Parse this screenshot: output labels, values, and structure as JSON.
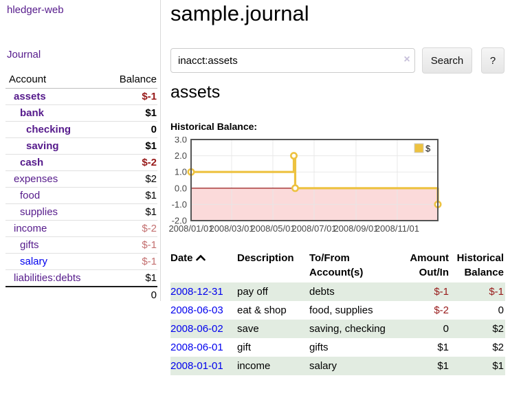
{
  "app": {
    "title": "hledger-web"
  },
  "sidebar": {
    "journal_label": "Journal",
    "table": {
      "account_header": "Account",
      "balance_header": "Balance",
      "rows": [
        {
          "name": "assets",
          "depth": 1,
          "bold": true,
          "link": "purple",
          "balance": "$-1",
          "balance_style": "neg-strong"
        },
        {
          "name": "bank",
          "depth": 2,
          "bold": true,
          "link": "purple",
          "balance": "$1",
          "balance_style": "plain"
        },
        {
          "name": "checking",
          "depth": 3,
          "bold": true,
          "link": "purple",
          "balance": "0",
          "balance_style": "plain"
        },
        {
          "name": "saving",
          "depth": 3,
          "bold": true,
          "link": "purple",
          "balance": "$1",
          "balance_style": "plain"
        },
        {
          "name": "cash",
          "depth": 2,
          "bold": true,
          "link": "purple",
          "balance": "$-2",
          "balance_style": "neg-strong"
        },
        {
          "name": "expenses",
          "depth": 1,
          "bold": false,
          "link": "purple",
          "balance": "$2",
          "balance_style": "plain"
        },
        {
          "name": "food",
          "depth": 2,
          "bold": false,
          "link": "purple",
          "balance": "$1",
          "balance_style": "plain"
        },
        {
          "name": "supplies",
          "depth": 2,
          "bold": false,
          "link": "purple",
          "balance": "$1",
          "balance_style": "plain"
        },
        {
          "name": "income",
          "depth": 1,
          "bold": false,
          "link": "purple",
          "balance": "$-2",
          "balance_style": "neg-soft"
        },
        {
          "name": "gifts",
          "depth": 2,
          "bold": false,
          "link": "purple",
          "balance": "$-1",
          "balance_style": "neg-soft"
        },
        {
          "name": "salary",
          "depth": 2,
          "bold": false,
          "link": "blue",
          "balance": "$-1",
          "balance_style": "neg-soft"
        },
        {
          "name": "liabilities:debts",
          "depth": 1,
          "bold": false,
          "link": "purple",
          "balance": "$1",
          "balance_style": "plain"
        }
      ],
      "total": "0"
    }
  },
  "main": {
    "title": "sample.journal",
    "search": {
      "value": "inacct:assets",
      "clear_icon": "×",
      "button_label": "Search",
      "help_label": "?"
    },
    "account_heading": "assets",
    "chart_heading": "Historical Balance:"
  },
  "chart_data": {
    "type": "line",
    "title": "Historical Balance",
    "step": true,
    "x_range": [
      "2008-01-01",
      "2008-12-31"
    ],
    "ylim": [
      -2.0,
      3.0
    ],
    "y_ticks": [
      "-2.0",
      "-1.0",
      "0.0",
      "1.0",
      "2.0",
      "3.0"
    ],
    "x_ticks": [
      {
        "label": "2008/01/01",
        "date": "2008-01-01"
      },
      {
        "label": "2008/03/01",
        "date": "2008-03-01"
      },
      {
        "label": "2008/05/01",
        "date": "2008-05-01"
      },
      {
        "label": "2008/07/01",
        "date": "2008-07-01"
      },
      {
        "label": "2008/09/01",
        "date": "2008-09-01"
      },
      {
        "label": "2008/11/01",
        "date": "2008-11-01"
      }
    ],
    "series": [
      {
        "name": "$",
        "color": "#edc240",
        "points": [
          {
            "date": "2008-01-01",
            "value": 1
          },
          {
            "date": "2008-06-01",
            "value": 2
          },
          {
            "date": "2008-06-03",
            "value": 0
          },
          {
            "date": "2008-12-31",
            "value": -1
          }
        ]
      }
    ],
    "legend": {
      "label": "$",
      "position": "top-right"
    },
    "grid": true,
    "colors": {
      "border": "#545454",
      "gridline": "#e6e6e6",
      "zero_line": "#8b0000",
      "negative_region": "#fbdada",
      "tick_text": "#474747"
    }
  },
  "transactions": {
    "headers": {
      "date": "Date",
      "description": "Description",
      "tofrom_line1": "To/From",
      "tofrom_line2": "Account(s)",
      "amount_line1": "Amount",
      "amount_line2": "Out/In",
      "balance_line1": "Historical",
      "balance_line2": "Balance"
    },
    "rows": [
      {
        "date": "2008-12-31",
        "description": "pay off",
        "accounts": "debts",
        "amount": "$-1",
        "amount_neg": true,
        "balance": "$-1",
        "balance_neg": true
      },
      {
        "date": "2008-06-03",
        "description": "eat & shop",
        "accounts": "food, supplies",
        "amount": "$-2",
        "amount_neg": true,
        "balance": "0",
        "balance_neg": false
      },
      {
        "date": "2008-06-02",
        "description": "save",
        "accounts": "saving, checking",
        "amount": "0",
        "amount_neg": false,
        "balance": "$2",
        "balance_neg": false
      },
      {
        "date": "2008-06-01",
        "description": "gift",
        "accounts": "gifts",
        "amount": "$1",
        "amount_neg": false,
        "balance": "$2",
        "balance_neg": false
      },
      {
        "date": "2008-01-01",
        "description": "income",
        "accounts": "salary",
        "amount": "$1",
        "amount_neg": false,
        "balance": "$1",
        "balance_neg": false
      }
    ]
  },
  "colors": {
    "link_purple": "#551a8b",
    "link_blue": "#0000ee",
    "negative_strong": "#971919",
    "negative_soft": "#c36f6f",
    "row_stripe_green": "#e2ece1",
    "chart_yellow": "#edc240"
  }
}
